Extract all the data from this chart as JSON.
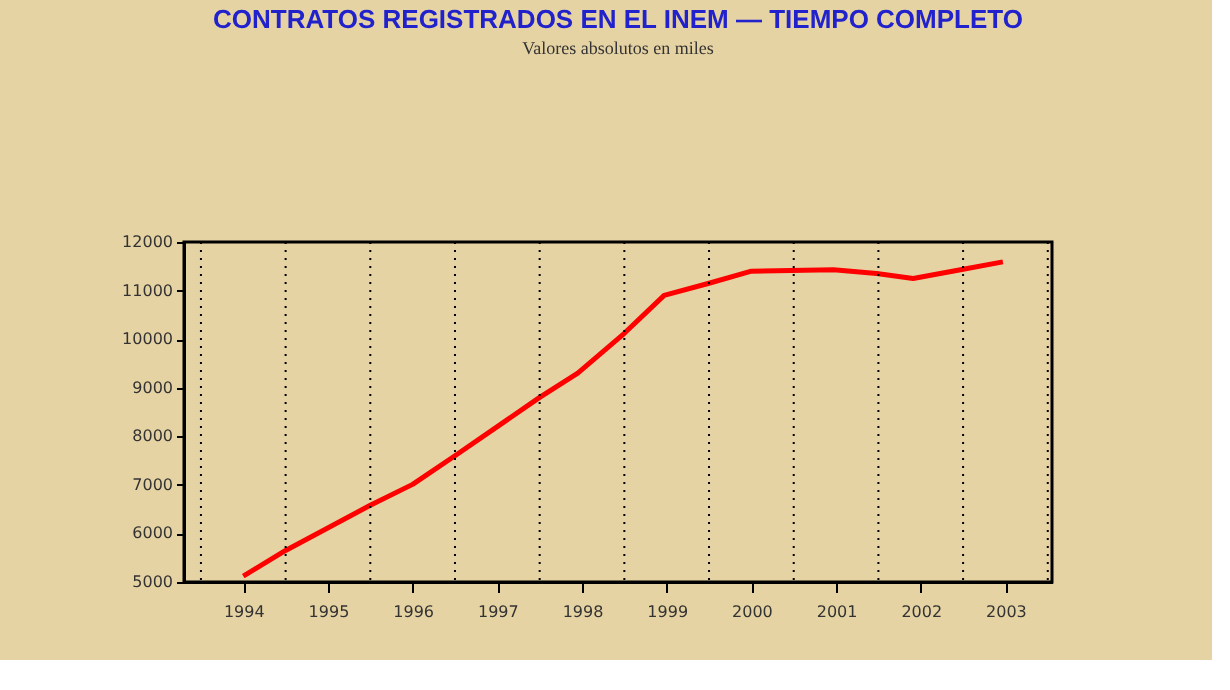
{
  "chart_data": {
    "type": "line",
    "title": "CONTRATOS REGISTRADOS EN EL INEM  —  TIEMPO COMPLETO",
    "subtitle": "Valores absolutos en miles",
    "x": [
      1994.0,
      1994.5,
      1995.5,
      1996.0,
      1996.5,
      1997.5,
      1997.95,
      1998.5,
      1998.97,
      1999.5,
      2000.0,
      2000.97,
      2001.48,
      2001.91,
      2002.47,
      2002.97
    ],
    "series": [
      {
        "color": "#ff0000",
        "values": [
          5120,
          5650,
          6580,
          7010,
          7600,
          8800,
          9300,
          10120,
          10900,
          11150,
          11400,
          11430,
          11350,
          11250,
          11430,
          11590
        ]
      }
    ],
    "xlim": [
      1993.3,
      2003.55
    ],
    "xticks": [
      1994,
      1995,
      1996,
      1997,
      1998,
      1999,
      2000,
      2001,
      2002,
      2003
    ],
    "ylim": [
      5000,
      12000
    ],
    "yticks": [
      5000,
      6000,
      7000,
      8000,
      9000,
      10000,
      11000,
      12000
    ],
    "grid": false,
    "marker": "none",
    "line_style": "solid",
    "ref_lines": [
      {
        "axis": "x",
        "value": 1993.5,
        "line_style": "dotted",
        "color": "#000000"
      },
      {
        "axis": "x",
        "value": 1994.5,
        "line_style": "dotted",
        "color": "#000000"
      },
      {
        "axis": "x",
        "value": 1995.5,
        "line_style": "dotted",
        "color": "#000000"
      },
      {
        "axis": "x",
        "value": 1996.5,
        "line_style": "dotted",
        "color": "#000000"
      },
      {
        "axis": "x",
        "value": 1997.5,
        "line_style": "dotted",
        "color": "#000000"
      },
      {
        "axis": "x",
        "value": 1998.5,
        "line_style": "dotted",
        "color": "#000000"
      },
      {
        "axis": "x",
        "value": 1999.5,
        "line_style": "dotted",
        "color": "#000000"
      },
      {
        "axis": "x",
        "value": 2000.5,
        "line_style": "dotted",
        "color": "#000000"
      },
      {
        "axis": "x",
        "value": 2001.5,
        "line_style": "dotted",
        "color": "#000000"
      },
      {
        "axis": "x",
        "value": 2002.5,
        "line_style": "dotted",
        "color": "#000000"
      },
      {
        "axis": "x",
        "value": 2003.5,
        "line_style": "dotted",
        "color": "#000000"
      }
    ]
  }
}
